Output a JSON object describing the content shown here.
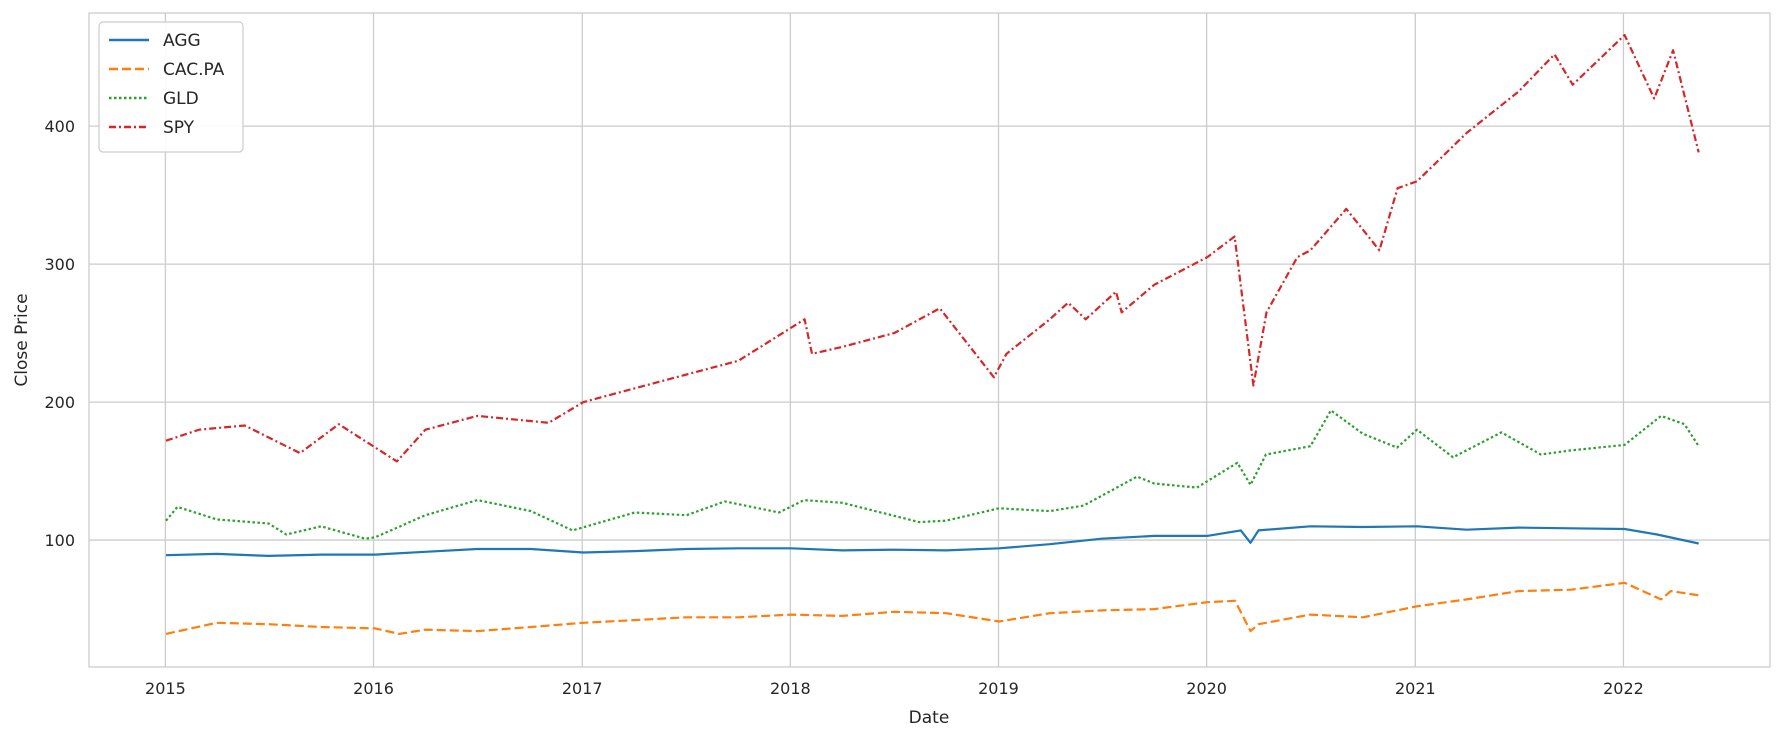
{
  "chart_data": {
    "type": "line",
    "title": "",
    "xlabel": "Date",
    "ylabel": "Close Price",
    "xlim": [
      "2014-08-20",
      "2022-09-15"
    ],
    "ylim": [
      8,
      482
    ],
    "x_ticks": [
      "2015",
      "2016",
      "2017",
      "2018",
      "2019",
      "2020",
      "2021",
      "2022"
    ],
    "y_ticks": [
      100,
      200,
      300,
      400
    ],
    "grid": true,
    "legend_position": "top-left",
    "series": [
      {
        "name": "AGG",
        "color": "#1f77b4",
        "style": "solid",
        "points": [
          [
            "2015-01-02",
            89
          ],
          [
            "2015-04-01",
            90
          ],
          [
            "2015-07-01",
            88.5
          ],
          [
            "2015-10-01",
            89.5
          ],
          [
            "2016-01-04",
            89.5
          ],
          [
            "2016-04-01",
            91.5
          ],
          [
            "2016-07-01",
            93.5
          ],
          [
            "2016-10-03",
            93.5
          ],
          [
            "2017-01-03",
            91
          ],
          [
            "2017-04-03",
            92
          ],
          [
            "2017-07-03",
            93.5
          ],
          [
            "2017-10-02",
            94
          ],
          [
            "2018-01-02",
            94
          ],
          [
            "2018-04-02",
            92.5
          ],
          [
            "2018-07-02",
            93
          ],
          [
            "2018-10-01",
            92.5
          ],
          [
            "2019-01-02",
            94
          ],
          [
            "2019-04-01",
            97
          ],
          [
            "2019-07-01",
            101
          ],
          [
            "2019-10-01",
            103
          ],
          [
            "2020-01-02",
            103
          ],
          [
            "2020-03-01",
            107
          ],
          [
            "2020-03-18",
            98
          ],
          [
            "2020-04-01",
            107
          ],
          [
            "2020-07-01",
            110
          ],
          [
            "2020-10-01",
            109.5
          ],
          [
            "2021-01-04",
            110
          ],
          [
            "2021-04-01",
            107.5
          ],
          [
            "2021-07-01",
            109
          ],
          [
            "2021-10-01",
            108.5
          ],
          [
            "2022-01-03",
            108
          ],
          [
            "2022-03-01",
            104
          ],
          [
            "2022-05-13",
            97.5
          ]
        ]
      },
      {
        "name": "CAC.PA",
        "color": "#ff7f0e",
        "style": "dashed",
        "points": [
          [
            "2015-01-02",
            32
          ],
          [
            "2015-04-01",
            40
          ],
          [
            "2015-07-01",
            39
          ],
          [
            "2015-10-01",
            37
          ],
          [
            "2016-01-04",
            36
          ],
          [
            "2016-02-15",
            32
          ],
          [
            "2016-04-01",
            35
          ],
          [
            "2016-07-01",
            34
          ],
          [
            "2016-10-03",
            37
          ],
          [
            "2017-01-03",
            40
          ],
          [
            "2017-04-03",
            42
          ],
          [
            "2017-07-03",
            44
          ],
          [
            "2017-10-02",
            44
          ],
          [
            "2018-01-02",
            46
          ],
          [
            "2018-04-02",
            45
          ],
          [
            "2018-07-02",
            48
          ],
          [
            "2018-10-01",
            47
          ],
          [
            "2019-01-02",
            41
          ],
          [
            "2019-04-01",
            47
          ],
          [
            "2019-07-01",
            49
          ],
          [
            "2019-10-01",
            50
          ],
          [
            "2020-01-02",
            55
          ],
          [
            "2020-02-20",
            56
          ],
          [
            "2020-03-18",
            34
          ],
          [
            "2020-04-01",
            39
          ],
          [
            "2020-07-01",
            46
          ],
          [
            "2020-10-01",
            44
          ],
          [
            "2021-01-04",
            52
          ],
          [
            "2021-04-01",
            57
          ],
          [
            "2021-07-01",
            63
          ],
          [
            "2021-10-01",
            64
          ],
          [
            "2022-01-03",
            69
          ],
          [
            "2022-03-08",
            57
          ],
          [
            "2022-03-25",
            63
          ],
          [
            "2022-05-13",
            60
          ]
        ]
      },
      {
        "name": "GLD",
        "color": "#2ca02c",
        "style": "dotted",
        "points": [
          [
            "2015-01-02",
            114
          ],
          [
            "2015-01-22",
            124
          ],
          [
            "2015-04-01",
            115
          ],
          [
            "2015-07-01",
            112
          ],
          [
            "2015-08-01",
            104
          ],
          [
            "2015-10-01",
            110
          ],
          [
            "2015-12-17",
            101
          ],
          [
            "2016-01-04",
            102
          ],
          [
            "2016-04-01",
            118
          ],
          [
            "2016-07-01",
            129
          ],
          [
            "2016-10-03",
            121
          ],
          [
            "2016-12-15",
            107
          ],
          [
            "2017-04-03",
            120
          ],
          [
            "2017-07-03",
            118
          ],
          [
            "2017-09-08",
            128
          ],
          [
            "2017-12-12",
            120
          ],
          [
            "2018-01-25",
            129
          ],
          [
            "2018-04-02",
            127
          ],
          [
            "2018-08-15",
            113
          ],
          [
            "2018-10-01",
            114
          ],
          [
            "2019-01-02",
            123
          ],
          [
            "2019-04-01",
            121
          ],
          [
            "2019-05-30",
            125
          ],
          [
            "2019-09-01",
            146
          ],
          [
            "2019-10-01",
            141
          ],
          [
            "2019-12-15",
            138
          ],
          [
            "2020-02-24",
            156
          ],
          [
            "2020-03-18",
            140
          ],
          [
            "2020-04-14",
            162
          ],
          [
            "2020-07-01",
            168
          ],
          [
            "2020-08-06",
            194
          ],
          [
            "2020-10-01",
            177
          ],
          [
            "2020-11-30",
            167
          ],
          [
            "2021-01-04",
            180
          ],
          [
            "2021-03-08",
            160
          ],
          [
            "2021-06-01",
            178
          ],
          [
            "2021-08-09",
            162
          ],
          [
            "2021-10-01",
            165
          ],
          [
            "2022-01-03",
            169
          ],
          [
            "2022-03-08",
            190
          ],
          [
            "2022-04-18",
            184
          ],
          [
            "2022-05-13",
            168
          ]
        ]
      },
      {
        "name": "SPY",
        "color": "#d62728",
        "style": "dashdot",
        "points": [
          [
            "2015-01-02",
            172
          ],
          [
            "2015-03-01",
            180
          ],
          [
            "2015-05-20",
            183
          ],
          [
            "2015-08-25",
            163
          ],
          [
            "2015-11-01",
            184
          ],
          [
            "2016-02-11",
            157
          ],
          [
            "2016-04-01",
            180
          ],
          [
            "2016-07-01",
            190
          ],
          [
            "2016-11-03",
            185
          ],
          [
            "2017-01-03",
            200
          ],
          [
            "2017-04-03",
            210
          ],
          [
            "2017-07-03",
            220
          ],
          [
            "2017-10-02",
            230
          ],
          [
            "2018-01-26",
            260
          ],
          [
            "2018-02-08",
            235
          ],
          [
            "2018-04-02",
            240
          ],
          [
            "2018-07-02",
            250
          ],
          [
            "2018-09-20",
            268
          ],
          [
            "2018-12-24",
            218
          ],
          [
            "2019-01-15",
            235
          ],
          [
            "2019-04-01",
            260
          ],
          [
            "2019-05-03",
            272
          ],
          [
            "2019-06-03",
            260
          ],
          [
            "2019-07-26",
            280
          ],
          [
            "2019-08-05",
            265
          ],
          [
            "2019-10-01",
            285
          ],
          [
            "2020-01-02",
            305
          ],
          [
            "2020-02-19",
            320
          ],
          [
            "2020-03-23",
            212
          ],
          [
            "2020-04-15",
            265
          ],
          [
            "2020-06-08",
            305
          ],
          [
            "2020-07-01",
            310
          ],
          [
            "2020-09-02",
            340
          ],
          [
            "2020-10-30",
            310
          ],
          [
            "2020-12-01",
            355
          ],
          [
            "2021-01-04",
            360
          ],
          [
            "2021-04-01",
            395
          ],
          [
            "2021-07-01",
            425
          ],
          [
            "2021-09-02",
            452
          ],
          [
            "2021-10-04",
            430
          ],
          [
            "2022-01-03",
            466
          ],
          [
            "2022-02-24",
            420
          ],
          [
            "2022-03-29",
            455
          ],
          [
            "2022-05-13",
            381
          ]
        ]
      }
    ]
  }
}
